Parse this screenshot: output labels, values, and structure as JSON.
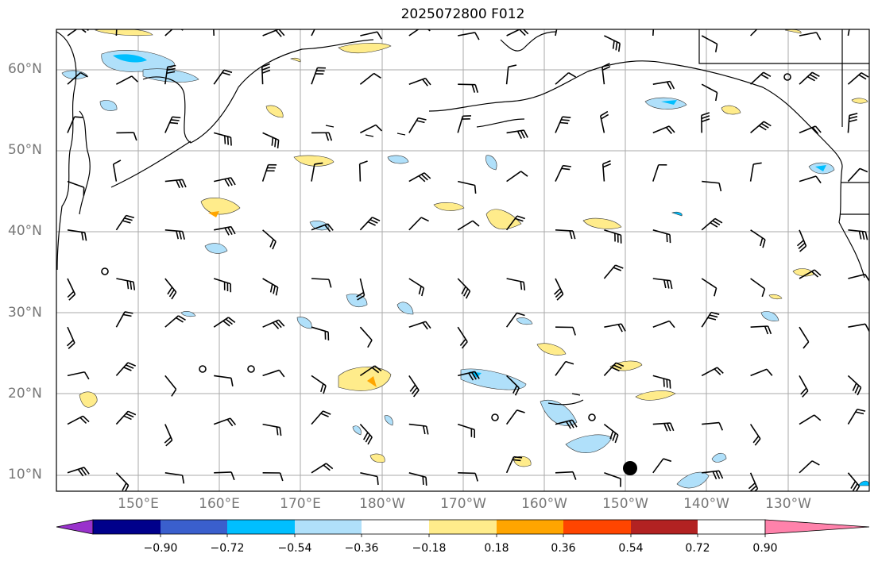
{
  "title": "2025072800 F012",
  "map": {
    "lat_labels": [
      "60°N",
      "50°N",
      "40°N",
      "30°N",
      "20°N",
      "10°N"
    ],
    "lon_labels": [
      "150°E",
      "160°E",
      "170°E",
      "180°W",
      "170°W",
      "160°W",
      "150°W",
      "140°W",
      "130°W"
    ],
    "grid": true,
    "features": [
      "coastlines",
      "wind-barbs",
      "shaded-contours"
    ]
  },
  "colorbar": {
    "ticks": [
      "−0.90",
      "−0.72",
      "−0.54",
      "−0.36",
      "−0.18",
      "0.18",
      "0.36",
      "0.54",
      "0.72",
      "0.90"
    ],
    "colors": [
      "#9932cc",
      "#00008b",
      "#3a5fcd",
      "#00bfff",
      "#b0e0fa",
      "#ffffff",
      "#ffec8b",
      "#ffa500",
      "#ff4500",
      "#b22222",
      "#ff82ab"
    ]
  }
}
